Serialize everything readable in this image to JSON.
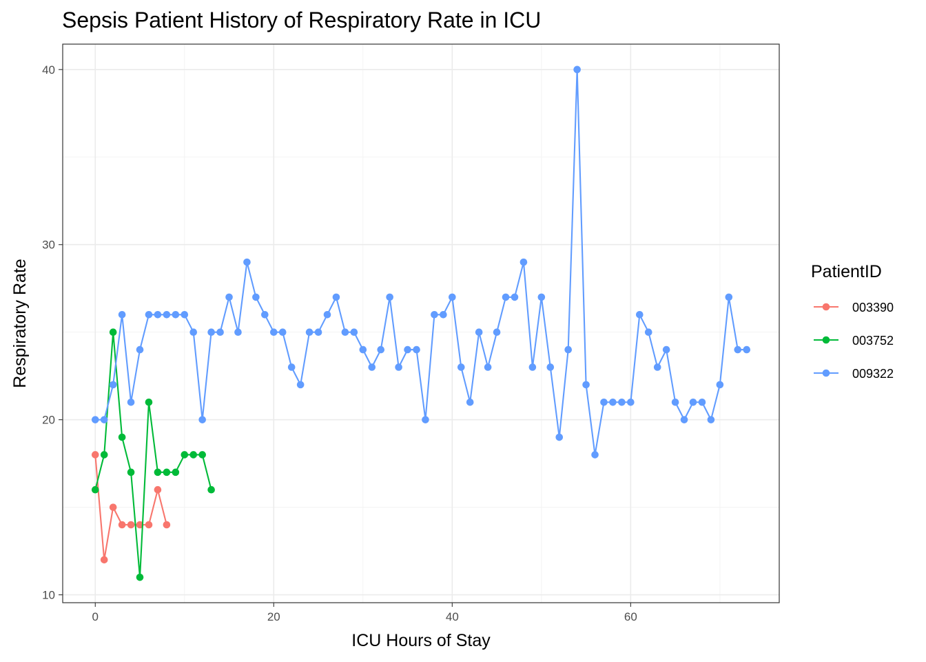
{
  "chart_data": {
    "type": "line",
    "title": "Sepsis Patient History of Respiratory Rate in ICU",
    "xlabel": "ICU Hours of Stay",
    "ylabel": "Respiratory Rate",
    "xlim": [
      -3.65,
      76.65
    ],
    "ylim": [
      9.55,
      41.45
    ],
    "x_ticks": [
      0,
      20,
      40,
      60
    ],
    "y_ticks": [
      10,
      20,
      30,
      40
    ],
    "grid": true,
    "legend": {
      "title": "PatientID",
      "position": "right"
    },
    "series": [
      {
        "name": "003390",
        "color": "#F8766D",
        "x": [
          0,
          1,
          2,
          3,
          4,
          5,
          6,
          7,
          8
        ],
        "y": [
          18,
          12,
          15,
          14,
          14,
          14,
          14,
          16,
          14
        ]
      },
      {
        "name": "003752",
        "color": "#00BA38",
        "x": [
          0,
          1,
          2,
          3,
          4,
          5,
          6,
          7,
          8,
          9,
          10,
          11,
          12,
          13
        ],
        "y": [
          16,
          18,
          25,
          19,
          17,
          11,
          21,
          17,
          17,
          17,
          18,
          18,
          18,
          16
        ]
      },
      {
        "name": "009322",
        "color": "#619CFF",
        "x": [
          0,
          1,
          2,
          3,
          4,
          5,
          6,
          7,
          8,
          9,
          10,
          11,
          12,
          13,
          14,
          15,
          16,
          17,
          18,
          19,
          20,
          21,
          22,
          23,
          24,
          25,
          26,
          27,
          28,
          29,
          30,
          31,
          32,
          33,
          34,
          35,
          36,
          37,
          38,
          39,
          40,
          41,
          42,
          43,
          44,
          45,
          46,
          47,
          48,
          49,
          50,
          51,
          52,
          53,
          54,
          55,
          56,
          57,
          58,
          59,
          60,
          61,
          62,
          63,
          64,
          65,
          66,
          67,
          68,
          69,
          70,
          71,
          72,
          73
        ],
        "y": [
          20,
          20,
          22,
          26,
          21,
          24,
          26,
          26,
          26,
          26,
          26,
          25,
          20,
          25,
          25,
          27,
          25,
          29,
          27,
          26,
          25,
          25,
          23,
          22,
          25,
          25,
          26,
          27,
          25,
          25,
          24,
          23,
          24,
          27,
          23,
          24,
          24,
          20,
          26,
          26,
          27,
          23,
          21,
          25,
          23,
          25,
          27,
          27,
          29,
          23,
          27,
          23,
          19,
          24,
          40,
          22,
          18,
          21,
          21,
          21,
          21,
          26,
          25,
          23,
          24,
          21,
          20,
          21,
          21,
          20,
          22,
          27,
          24,
          24
        ]
      }
    ]
  }
}
